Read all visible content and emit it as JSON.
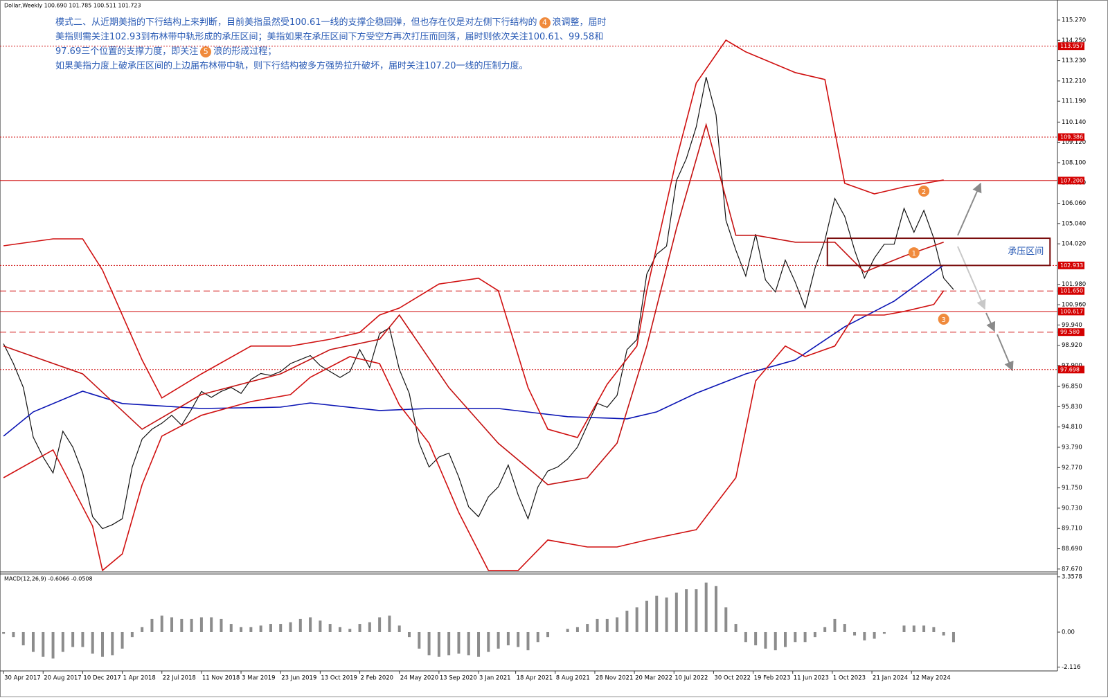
{
  "chart_data": [
    {
      "type": "line",
      "title": "Dollar,Weekly  100.690 101.785 100.511 101.723",
      "annotation_lines": [
        [
          "模式二、从近期美指的下行结构上来判断，目前美指虽然受100.61一线的支撑企稳回弹，但也存在仅是对左侧下行结构的",
          "4",
          "浪调整，届时"
        ],
        [
          "美指则需关注102.93到布林带中轨形成的承压区间；美指如果在承压区间下方受空方再次打压而回落，届时则依次关注100.61、99.58和"
        ],
        [
          "97.69三个位置的支撑力度，即关注",
          "5",
          "浪的形成过程；"
        ],
        [
          "如果美指力度上破承压区间的上边届布林带中轨，则下行结构被多方强势拉升破坏，届时关注107.20一线的压制力度。"
        ]
      ],
      "xlim": [
        "2017-04-20",
        "2025-06-29"
      ],
      "ylim": [
        87.56,
        115.86
      ],
      "yticks": [
        {
          "value": 115.27,
          "label": "115.270"
        },
        {
          "value": 114.25,
          "label": "114.250"
        },
        {
          "value": 113.23,
          "label": "113.230"
        },
        {
          "value": 112.21,
          "label": "112.210"
        },
        {
          "value": 111.19,
          "label": "111.190"
        },
        {
          "value": 110.14,
          "label": "110.140"
        },
        {
          "value": 109.12,
          "label": "109.120"
        },
        {
          "value": 108.1,
          "label": "108.100"
        },
        {
          "value": 107.08,
          "label": "107.080"
        },
        {
          "value": 106.06,
          "label": "106.060"
        },
        {
          "value": 105.04,
          "label": "105.040"
        },
        {
          "value": 104.02,
          "label": "104.020"
        },
        {
          "value": 101.98,
          "label": "101.980"
        },
        {
          "value": 100.96,
          "label": "100.960"
        },
        {
          "value": 99.94,
          "label": "99.940"
        },
        {
          "value": 98.92,
          "label": "98.920"
        },
        {
          "value": 97.9,
          "label": "97.900"
        },
        {
          "value": 96.85,
          "label": "96.850"
        },
        {
          "value": 95.83,
          "label": "95.830"
        },
        {
          "value": 94.81,
          "label": "94.810"
        },
        {
          "value": 93.79,
          "label": "93.790"
        },
        {
          "value": 92.77,
          "label": "92.770"
        },
        {
          "value": 91.75,
          "label": "91.750"
        },
        {
          "value": 90.73,
          "label": "90.730"
        },
        {
          "value": 89.71,
          "label": "89.710"
        },
        {
          "value": 88.69,
          "label": "88.690"
        },
        {
          "value": 87.67,
          "label": "87.670"
        }
      ],
      "levels": [
        {
          "value": 113.957,
          "label": "113.957",
          "style": "dotted"
        },
        {
          "value": 109.386,
          "label": "109.386",
          "style": "dotted"
        },
        {
          "value": 107.2,
          "label": "107.200",
          "style": "solid"
        },
        {
          "value": 102.933,
          "label": "102.933",
          "style": "dotted"
        },
        {
          "value": 101.65,
          "label": "101.650",
          "style": "dashed"
        },
        {
          "value": 100.617,
          "label": "100.617",
          "style": "solid"
        },
        {
          "value": 99.58,
          "label": "99.580",
          "style": "dashed"
        },
        {
          "value": 97.698,
          "label": "97.698",
          "style": "dotted"
        }
      ],
      "zone": {
        "label": "承压区间",
        "x": [
          "2023-09-17",
          "2025-06-08"
        ],
        "ylim": [
          102.933,
          104.3
        ]
      },
      "markers": [
        {
          "label": "1",
          "x": "2024-05-19",
          "y": 103.57
        },
        {
          "label": "2",
          "x": "2024-06-16",
          "y": 106.67
        },
        {
          "label": "3",
          "x": "2024-08-11",
          "y": 100.23
        }
      ],
      "series": [
        {
          "color": "#111111",
          "x": [
            "2017-04-30",
            "2017-05-28",
            "2017-06-25",
            "2017-07-23",
            "2017-08-20",
            "2017-09-17",
            "2017-10-15",
            "2017-11-12",
            "2017-12-10",
            "2018-01-07",
            "2018-02-04",
            "2018-03-04",
            "2018-04-01",
            "2018-04-29",
            "2018-05-27",
            "2018-06-24",
            "2018-07-22",
            "2018-08-19",
            "2018-09-16",
            "2018-10-14",
            "2018-11-11",
            "2018-12-09",
            "2019-01-06",
            "2019-02-03",
            "2019-03-03",
            "2019-03-31",
            "2019-04-28",
            "2019-05-26",
            "2019-06-23",
            "2019-07-21",
            "2019-08-18",
            "2019-09-15",
            "2019-10-13",
            "2019-11-10",
            "2019-12-08",
            "2020-01-05",
            "2020-02-02",
            "2020-03-01",
            "2020-03-29",
            "2020-04-26",
            "2020-05-24",
            "2020-06-21",
            "2020-07-19",
            "2020-08-16",
            "2020-09-13",
            "2020-10-11",
            "2020-11-08",
            "2020-12-06",
            "2021-01-03",
            "2021-01-31",
            "2021-02-28",
            "2021-03-28",
            "2021-04-25",
            "2021-05-23",
            "2021-06-20",
            "2021-07-18",
            "2021-08-15",
            "2021-09-12",
            "2021-10-10",
            "2021-11-07",
            "2021-12-05",
            "2022-01-02",
            "2022-01-30",
            "2022-02-27",
            "2022-03-27",
            "2022-04-24",
            "2022-05-22",
            "2022-06-19",
            "2022-07-17",
            "2022-08-14",
            "2022-09-11",
            "2022-10-09",
            "2022-11-06",
            "2022-12-04",
            "2023-01-01",
            "2023-01-29",
            "2023-02-26",
            "2023-03-26",
            "2023-04-23",
            "2023-05-21",
            "2023-06-18",
            "2023-07-16",
            "2023-08-13",
            "2023-09-10",
            "2023-10-08",
            "2023-11-05",
            "2023-12-03",
            "2023-12-31",
            "2024-01-28",
            "2024-02-25",
            "2024-03-24",
            "2024-04-21",
            "2024-05-19",
            "2024-06-16",
            "2024-07-14",
            "2024-08-11",
            "2024-09-08"
          ],
          "values": [
            99.0,
            98.0,
            96.8,
            94.3,
            93.3,
            92.5,
            94.6,
            93.8,
            92.5,
            90.3,
            89.7,
            89.9,
            90.2,
            92.8,
            94.2,
            94.7,
            95.0,
            95.4,
            94.9,
            95.7,
            96.6,
            96.3,
            96.6,
            96.8,
            96.5,
            97.2,
            97.5,
            97.4,
            97.6,
            98.0,
            98.2,
            98.4,
            97.9,
            97.6,
            97.3,
            97.6,
            98.7,
            97.8,
            99.5,
            99.8,
            97.7,
            96.5,
            94.0,
            92.8,
            93.3,
            93.5,
            92.3,
            90.8,
            90.3,
            91.3,
            91.8,
            92.9,
            91.4,
            90.2,
            91.8,
            92.6,
            92.8,
            93.2,
            93.8,
            94.9,
            96.0,
            95.8,
            96.4,
            98.7,
            99.2,
            102.5,
            103.5,
            103.9,
            107.2,
            108.3,
            109.9,
            112.4,
            110.5,
            105.2,
            103.7,
            102.4,
            104.5,
            102.2,
            101.6,
            103.2,
            102.1,
            100.8,
            102.8,
            104.2,
            106.3,
            105.4,
            103.7,
            102.3,
            103.3,
            104.0,
            104.0,
            105.8,
            104.6,
            105.7,
            104.3,
            102.3,
            101.72
          ]
        },
        {
          "color": "#0a14b4",
          "x": [
            "2017-04-30",
            "2017-07-23",
            "2017-12-10",
            "2018-04-01",
            "2018-11-11",
            "2019-06-23",
            "2019-09-15",
            "2020-03-29",
            "2020-08-16",
            "2021-02-28",
            "2021-09-12",
            "2022-02-27",
            "2022-05-22",
            "2022-09-11",
            "2023-01-29",
            "2023-06-18",
            "2023-11-05",
            "2024-03-24",
            "2024-08-11"
          ],
          "values": [
            94.35,
            95.57,
            96.61,
            95.99,
            95.74,
            95.81,
            96.02,
            95.64,
            95.74,
            95.74,
            95.33,
            95.22,
            95.57,
            96.51,
            97.48,
            98.18,
            99.85,
            101.14,
            102.95
          ]
        },
        {
          "color": "#d01010",
          "x": [
            "2017-04-30",
            "2017-09-17",
            "2017-12-10",
            "2018-02-04",
            "2018-05-27",
            "2018-07-22",
            "2018-11-11",
            "2019-03-31",
            "2019-07-21",
            "2019-11-10",
            "2020-02-02",
            "2020-03-29",
            "2020-05-24",
            "2020-09-13",
            "2021-01-03",
            "2021-02-28",
            "2021-05-23",
            "2021-07-18",
            "2021-10-10",
            "2022-01-02",
            "2022-03-27",
            "2022-04-24",
            "2022-07-17",
            "2022-09-11",
            "2022-12-04",
            "2023-01-29",
            "2023-06-18",
            "2023-09-10",
            "2023-11-05",
            "2024-01-28",
            "2024-04-21",
            "2024-08-11"
          ],
          "values": [
            103.92,
            104.27,
            104.27,
            102.7,
            98.18,
            96.27,
            97.48,
            98.88,
            98.88,
            99.22,
            99.57,
            100.44,
            100.79,
            102.0,
            102.29,
            101.66,
            96.79,
            94.7,
            94.28,
            96.96,
            98.88,
            101.66,
            108.27,
            112.1,
            114.26,
            113.67,
            112.63,
            112.28,
            107.06,
            106.53,
            106.88,
            107.23
          ]
        },
        {
          "color": "#c41010",
          "x": [
            "2017-04-30",
            "2017-12-10",
            "2018-05-27",
            "2018-11-11",
            "2019-06-23",
            "2019-11-10",
            "2020-03-29",
            "2020-05-24",
            "2020-10-11",
            "2021-02-28",
            "2021-07-18",
            "2021-11-07",
            "2022-01-30",
            "2022-04-24",
            "2022-07-17",
            "2022-10-09",
            "2023-01-01",
            "2023-02-26",
            "2023-06-18",
            "2023-10-08",
            "2023-12-31",
            "2024-04-21",
            "2024-08-11"
          ],
          "values": [
            98.88,
            97.48,
            94.7,
            96.44,
            97.48,
            98.7,
            99.22,
            100.44,
            96.79,
            93.99,
            91.91,
            92.26,
            94.0,
            98.88,
            104.79,
            110.01,
            104.45,
            104.45,
            104.1,
            104.1,
            102.6,
            103.4,
            104.1
          ]
        },
        {
          "color": "#d01010",
          "x": [
            "2017-04-30",
            "2017-09-17",
            "2018-01-07",
            "2018-02-04",
            "2018-04-01",
            "2018-05-27",
            "2018-07-22",
            "2018-11-11",
            "2019-03-31",
            "2019-07-21",
            "2019-09-15",
            "2020-01-05",
            "2020-03-29",
            "2020-05-24",
            "2020-08-16",
            "2020-11-08",
            "2021-01-31",
            "2021-04-25",
            "2021-07-18",
            "2021-11-07",
            "2022-01-30",
            "2022-04-24",
            "2022-09-11",
            "2023-01-01",
            "2023-02-26",
            "2023-05-21",
            "2023-07-16",
            "2023-10-08",
            "2023-12-03",
            "2024-02-25",
            "2024-04-21",
            "2024-07-14",
            "2024-08-11"
          ],
          "values": [
            92.26,
            93.66,
            89.83,
            87.6,
            88.43,
            91.91,
            94.35,
            95.4,
            96.09,
            96.44,
            97.31,
            98.35,
            98.0,
            95.92,
            94.0,
            90.52,
            87.6,
            87.6,
            89.13,
            88.78,
            88.78,
            89.13,
            89.65,
            92.26,
            97.13,
            98.88,
            98.35,
            98.88,
            100.44,
            100.44,
            100.62,
            100.97,
            101.66
          ]
        }
      ]
    },
    {
      "type": "bar",
      "title": "MACD(12,26,9) -0.6066 -0.0508",
      "color": "#8c8c8c",
      "xlim": [
        "2017-04-20",
        "2025-06-29"
      ],
      "ylim": [
        -2.31,
        3.484
      ],
      "yticks": [
        3.3578,
        {
          "value": 0,
          "label": "0.00"
        },
        -2.116
      ],
      "xticks": [
        {
          "value": "2017-04-30",
          "label": "30 Apr 2017"
        },
        {
          "value": "2017-08-20",
          "label": "20 Aug 2017"
        },
        {
          "value": "2017-12-10",
          "label": "10 Dec 2017"
        },
        {
          "value": "2018-04-01",
          "label": "1 Apr 2018"
        },
        {
          "value": "2018-07-22",
          "label": "22 Jul 2018"
        },
        {
          "value": "2018-11-11",
          "label": "11 Nov 2018"
        },
        {
          "value": "2019-03-03",
          "label": "3 Mar 2019"
        },
        {
          "value": "2019-06-23",
          "label": "23 Jun 2019"
        },
        {
          "value": "2019-10-13",
          "label": "13 Oct 2019"
        },
        {
          "value": "2020-02-02",
          "label": "2 Feb 2020"
        },
        {
          "value": "2020-05-24",
          "label": "24 May 2020"
        },
        {
          "value": "2020-09-13",
          "label": "13 Sep 2020"
        },
        {
          "value": "2021-01-03",
          "label": "3 Jan 2021"
        },
        {
          "value": "2021-04-18",
          "label": "18 Apr 2021"
        },
        {
          "value": "2021-08-08",
          "label": "8 Aug 2021"
        },
        {
          "value": "2021-11-28",
          "label": "28 Nov 2021"
        },
        {
          "value": "2022-03-20",
          "label": "20 Mar 2022"
        },
        {
          "value": "2022-07-10",
          "label": "10 Jul 2022"
        },
        {
          "value": "2022-10-30",
          "label": "30 Oct 2022"
        },
        {
          "value": "2023-02-19",
          "label": "19 Feb 2023"
        },
        {
          "value": "2023-06-11",
          "label": "11 Jun 2023"
        },
        {
          "value": "2023-10-01",
          "label": "1 Oct 2023"
        },
        {
          "value": "2024-01-21",
          "label": "21 Jan 2024"
        },
        {
          "value": "2024-05-12",
          "label": "12 May 2024"
        }
      ],
      "x": [
        "2017-04-30",
        "2017-05-28",
        "2017-06-25",
        "2017-07-23",
        "2017-08-20",
        "2017-09-17",
        "2017-10-15",
        "2017-11-12",
        "2017-12-10",
        "2018-01-07",
        "2018-02-04",
        "2018-03-04",
        "2018-04-01",
        "2018-04-29",
        "2018-05-27",
        "2018-06-24",
        "2018-07-22",
        "2018-08-19",
        "2018-09-16",
        "2018-10-14",
        "2018-11-11",
        "2018-12-09",
        "2019-01-06",
        "2019-02-03",
        "2019-03-03",
        "2019-03-31",
        "2019-04-28",
        "2019-05-26",
        "2019-06-23",
        "2019-07-21",
        "2019-08-18",
        "2019-09-15",
        "2019-10-13",
        "2019-11-10",
        "2019-12-08",
        "2020-01-05",
        "2020-02-02",
        "2020-03-01",
        "2020-03-29",
        "2020-04-26",
        "2020-05-24",
        "2020-06-21",
        "2020-07-19",
        "2020-08-16",
        "2020-09-13",
        "2020-10-11",
        "2020-11-08",
        "2020-12-06",
        "2021-01-03",
        "2021-01-31",
        "2021-02-28",
        "2021-03-28",
        "2021-04-25",
        "2021-05-23",
        "2021-06-20",
        "2021-07-18",
        "2021-08-15",
        "2021-09-12",
        "2021-10-10",
        "2021-11-07",
        "2021-12-05",
        "2022-01-02",
        "2022-01-30",
        "2022-02-27",
        "2022-03-27",
        "2022-04-24",
        "2022-05-22",
        "2022-06-19",
        "2022-07-17",
        "2022-08-14",
        "2022-09-11",
        "2022-10-09",
        "2022-11-06",
        "2022-12-04",
        "2023-01-01",
        "2023-01-29",
        "2023-02-26",
        "2023-03-26",
        "2023-04-23",
        "2023-05-21",
        "2023-06-18",
        "2023-07-16",
        "2023-08-13",
        "2023-09-10",
        "2023-10-08",
        "2023-11-05",
        "2023-12-03",
        "2023-12-31",
        "2024-01-28",
        "2024-02-25",
        "2024-03-24",
        "2024-04-21",
        "2024-05-19",
        "2024-06-16",
        "2024-07-14",
        "2024-08-11",
        "2024-09-08"
      ],
      "values": [
        -0.1,
        -0.3,
        -0.8,
        -1.2,
        -1.5,
        -1.6,
        -1.2,
        -0.9,
        -0.9,
        -1.3,
        -1.5,
        -1.4,
        -1.0,
        -0.3,
        0.3,
        0.8,
        1.0,
        0.9,
        0.8,
        0.8,
        0.9,
        0.9,
        0.8,
        0.5,
        0.3,
        0.3,
        0.4,
        0.5,
        0.5,
        0.6,
        0.8,
        0.9,
        0.7,
        0.5,
        0.3,
        0.2,
        0.5,
        0.6,
        0.9,
        1.0,
        0.4,
        -0.3,
        -1.0,
        -1.4,
        -1.5,
        -1.4,
        -1.3,
        -1.4,
        -1.5,
        -1.2,
        -1.0,
        -0.8,
        -0.9,
        -1.1,
        -0.6,
        -0.3,
        0.0,
        0.2,
        0.3,
        0.5,
        0.8,
        0.8,
        0.9,
        1.3,
        1.5,
        1.9,
        2.2,
        2.1,
        2.4,
        2.6,
        2.6,
        3.0,
        2.8,
        1.5,
        0.5,
        -0.6,
        -0.8,
        -1.0,
        -1.1,
        -0.9,
        -0.6,
        -0.6,
        -0.3,
        0.3,
        0.8,
        0.5,
        -0.2,
        -0.5,
        -0.4,
        -0.1,
        0.0,
        0.4,
        0.4,
        0.4,
        0.3,
        -0.2,
        -0.6066
      ]
    }
  ]
}
